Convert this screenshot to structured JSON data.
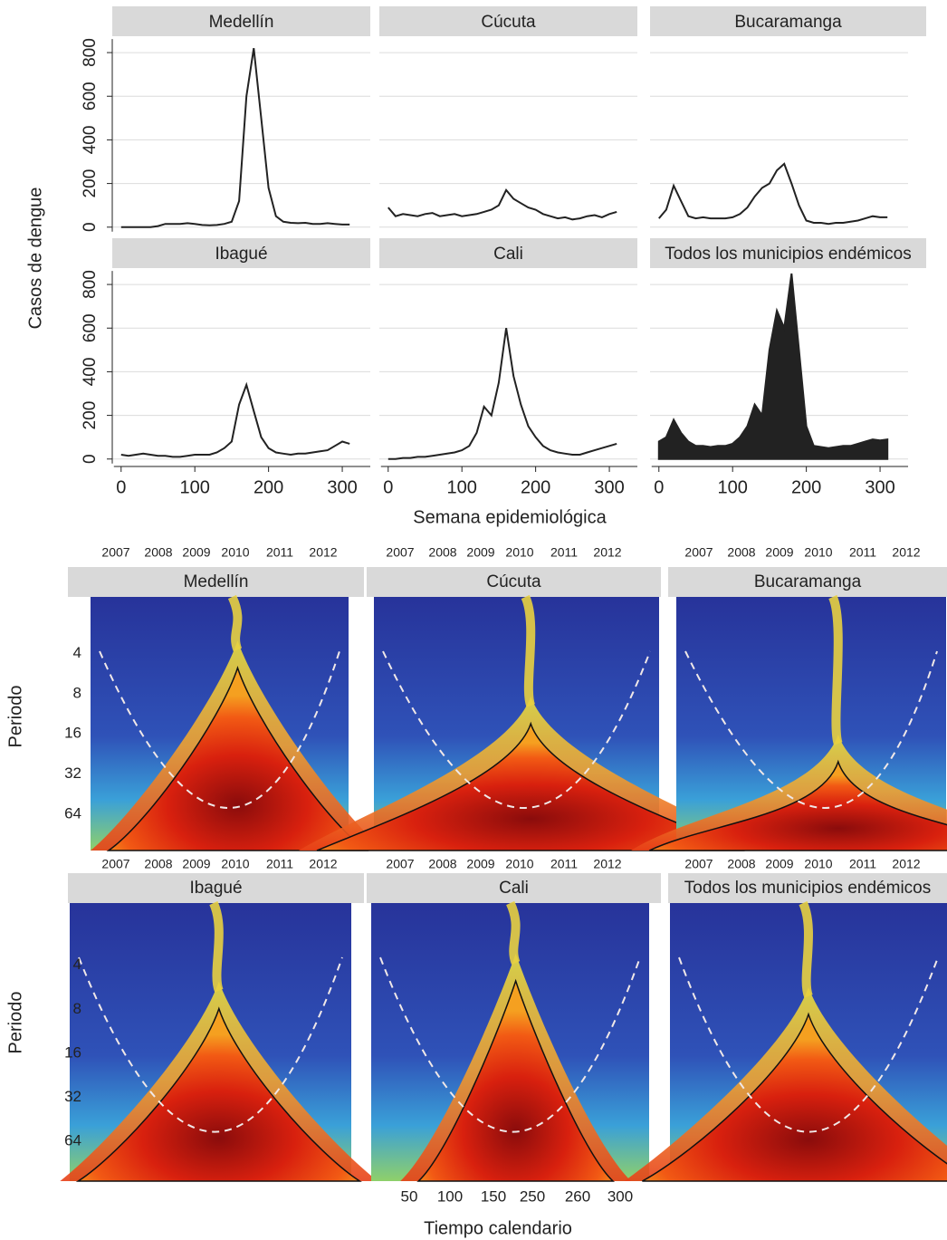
{
  "chart_data": [
    {
      "type": "line",
      "ylabel": "Casos de dengue",
      "xlabel": "Semana epidemiológica",
      "xlim": [
        -12,
        338
      ],
      "xticks": [
        0,
        100,
        200,
        300
      ],
      "ylim": [
        -30,
        875
      ],
      "yticks": [
        0,
        200,
        400,
        600,
        800
      ],
      "grid": true,
      "color": "#222222",
      "x": [
        0,
        10,
        20,
        30,
        40,
        50,
        60,
        70,
        80,
        90,
        100,
        110,
        120,
        130,
        140,
        150,
        160,
        170,
        180,
        190,
        200,
        210,
        220,
        230,
        240,
        250,
        260,
        270,
        280,
        290,
        300,
        310
      ],
      "panels": [
        {
          "title": "Medellín",
          "values": [
            0,
            0,
            0,
            0,
            0,
            5,
            15,
            15,
            15,
            18,
            15,
            10,
            8,
            10,
            15,
            25,
            120,
            600,
            820,
            500,
            180,
            50,
            25,
            20,
            18,
            20,
            15,
            15,
            18,
            15,
            12,
            12
          ]
        },
        {
          "title": "Cúcuta",
          "values": [
            90,
            50,
            60,
            55,
            50,
            60,
            65,
            50,
            55,
            60,
            50,
            55,
            60,
            70,
            80,
            100,
            170,
            130,
            110,
            90,
            80,
            60,
            50,
            40,
            45,
            35,
            40,
            50,
            55,
            45,
            60,
            70
          ]
        },
        {
          "title": "Bucaramanga",
          "values": [
            40,
            80,
            190,
            120,
            50,
            40,
            45,
            40,
            40,
            40,
            45,
            60,
            90,
            140,
            180,
            200,
            260,
            290,
            200,
            100,
            30,
            20,
            20,
            15,
            20,
            20,
            25,
            30,
            40,
            50,
            45,
            45
          ]
        },
        {
          "title": "Ibagué",
          "values": [
            20,
            15,
            20,
            25,
            20,
            15,
            15,
            10,
            10,
            15,
            20,
            20,
            20,
            30,
            50,
            80,
            250,
            340,
            220,
            100,
            50,
            30,
            25,
            20,
            25,
            25,
            30,
            35,
            40,
            60,
            80,
            70
          ]
        },
        {
          "title": "Cali",
          "values": [
            0,
            0,
            5,
            5,
            10,
            10,
            15,
            20,
            25,
            30,
            40,
            60,
            120,
            240,
            200,
            350,
            600,
            380,
            250,
            150,
            100,
            60,
            40,
            30,
            25,
            20,
            20,
            30,
            40,
            50,
            60,
            70
          ]
        },
        {
          "title": "Todos los municipios endémicos",
          "area": true,
          "values": [
            80,
            100,
            180,
            120,
            80,
            60,
            60,
            55,
            60,
            60,
            70,
            100,
            150,
            250,
            200,
            500,
            680,
            600,
            850,
            500,
            150,
            60,
            55,
            50,
            55,
            60,
            60,
            70,
            80,
            90,
            85,
            90
          ]
        }
      ]
    },
    {
      "type": "wavelet",
      "ylabel": "Periodo",
      "xlabel": "Tiempo calendario",
      "log_y": true,
      "ylim": [
        1.5,
        120
      ],
      "yticks": [
        4,
        8,
        16,
        32,
        64
      ],
      "year_labels": [
        "2007",
        "2008",
        "2009",
        "2010",
        "2011",
        "2012"
      ],
      "xtick_labels": [
        "50",
        "100",
        "150",
        "250",
        "260",
        "300"
      ],
      "panels": [
        {
          "title": "Medellín"
        },
        {
          "title": "Cúcuta"
        },
        {
          "title": "Bucaramanga"
        },
        {
          "title": "Ibagué"
        },
        {
          "title": "Cali"
        },
        {
          "title": "Todos los municipios endémicos"
        }
      ]
    }
  ]
}
